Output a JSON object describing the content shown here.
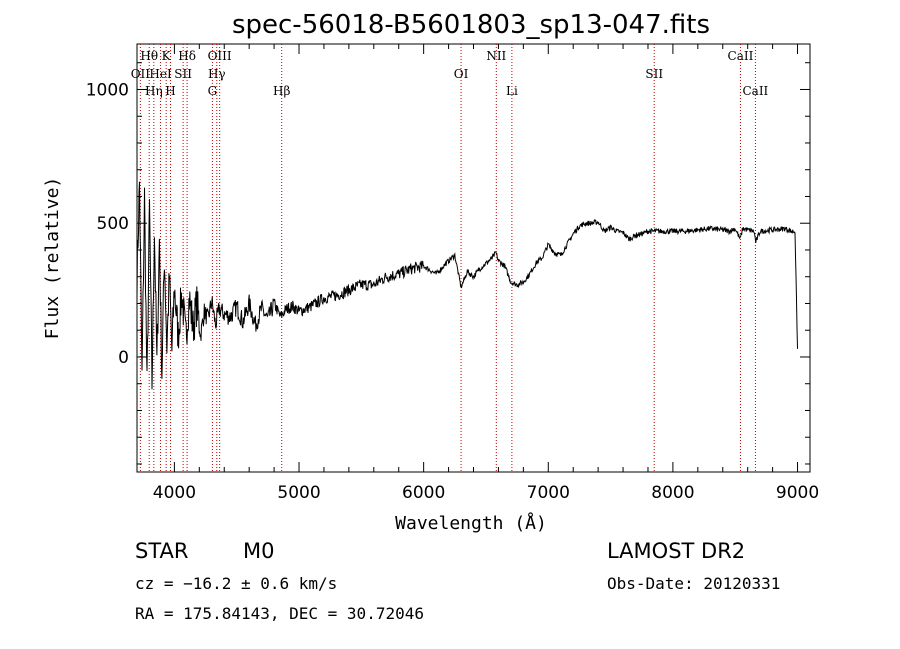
{
  "chart_data": {
    "type": "line",
    "title": "spec-56018-B5601803_sp13-047.fits",
    "xlabel": "Wavelength (Å)",
    "ylabel": "Flux (relative)",
    "xlim": [
      3700,
      9100
    ],
    "ylim": [
      -430,
      1170
    ],
    "xticks": [
      4000,
      5000,
      6000,
      7000,
      8000,
      9000
    ],
    "yticks": [
      0,
      500,
      1000
    ],
    "ytick_labels": [
      "0",
      "500",
      "1000"
    ],
    "grid": false,
    "line_color": "#000000",
    "marker_color": "#c00000",
    "spectral_lines": [
      {
        "label": "Hθ",
        "x": 3798,
        "row": 0
      },
      {
        "label": "K",
        "x": 3934,
        "row": 0
      },
      {
        "label": "Hδ",
        "x": 4102,
        "row": 0
      },
      {
        "label": "OIII",
        "x": 4363,
        "row": 0
      },
      {
        "label": "NII",
        "x": 6583,
        "row": 0
      },
      {
        "label": "CaII",
        "x": 8542,
        "row": 0
      },
      {
        "label": "OII",
        "x": 3727,
        "row": 1
      },
      {
        "label": "HeI",
        "x": 3889,
        "row": 1
      },
      {
        "label": "SII",
        "x": 4070,
        "row": 1
      },
      {
        "label": "Hγ",
        "x": 4340,
        "row": 1
      },
      {
        "label": "OI",
        "x": 6300,
        "row": 1
      },
      {
        "label": "SII",
        "x": 7850,
        "row": 1
      },
      {
        "label": "Hη",
        "x": 3835,
        "row": 2
      },
      {
        "label": "H",
        "x": 3969,
        "row": 2
      },
      {
        "label": "G",
        "x": 4305,
        "row": 2
      },
      {
        "label": "Hβ",
        "x": 4861,
        "row": 2
      },
      {
        "label": "Li",
        "x": 6708,
        "row": 2
      },
      {
        "label": "CaII",
        "x": 8662,
        "row": 2
      }
    ],
    "series": [
      {
        "x": [
          3700,
          3720,
          3740,
          3760,
          3780,
          3800,
          3820,
          3840,
          3860,
          3880,
          3900,
          3920,
          3940,
          3960,
          3980,
          4000,
          4030,
          4060,
          4090,
          4120,
          4150,
          4180,
          4210,
          4240,
          4270,
          4300,
          4330,
          4360,
          4400,
          4450,
          4500,
          4550,
          4600,
          4650,
          4700,
          4750,
          4800,
          4850,
          4900,
          4950,
          5000,
          5100,
          5200,
          5300,
          5400,
          5500,
          5600,
          5700,
          5800,
          5900,
          6000,
          6100,
          6200,
          6250,
          6300,
          6350,
          6400,
          6450,
          6500,
          6550,
          6580,
          6600,
          6650,
          6700,
          6750,
          6800,
          6850,
          6900,
          6950,
          7000,
          7050,
          7100,
          7150,
          7200,
          7250,
          7300,
          7350,
          7400,
          7450,
          7500,
          7550,
          7600,
          7650,
          7700,
          7750,
          7800,
          7850,
          7900,
          7950,
          8000,
          8100,
          8200,
          8300,
          8400,
          8450,
          8500,
          8540,
          8560,
          8600,
          8650,
          8665,
          8700,
          8800,
          8900,
          8950,
          8980,
          9000
        ],
        "y": [
          300,
          650,
          -80,
          600,
          -120,
          560,
          -100,
          480,
          -30,
          440,
          -60,
          380,
          40,
          300,
          20,
          260,
          80,
          240,
          70,
          220,
          110,
          200,
          80,
          170,
          140,
          210,
          120,
          180,
          160,
          150,
          190,
          130,
          200,
          120,
          180,
          140,
          200,
          150,
          180,
          190,
          170,
          190,
          220,
          230,
          250,
          270,
          270,
          300,
          310,
          330,
          340,
          310,
          360,
          380,
          260,
          320,
          300,
          330,
          350,
          370,
          390,
          360,
          340,
          280,
          270,
          280,
          310,
          350,
          370,
          420,
          390,
          380,
          420,
          460,
          490,
          500,
          500,
          505,
          470,
          485,
          470,
          465,
          440,
          455,
          460,
          470,
          470,
          470,
          470,
          470,
          470,
          475,
          480,
          475,
          470,
          480,
          440,
          480,
          475,
          470,
          430,
          470,
          475,
          480,
          470,
          470,
          30
        ]
      }
    ]
  },
  "info": {
    "object_class": "STAR",
    "subclass": "M0",
    "survey": "LAMOST DR2",
    "velocity": "cz = −16.2 ± 0.6 km/s",
    "obs_date": "Obs-Date: 20120331",
    "coords": "RA = 175.84143, DEC =  30.72046"
  }
}
